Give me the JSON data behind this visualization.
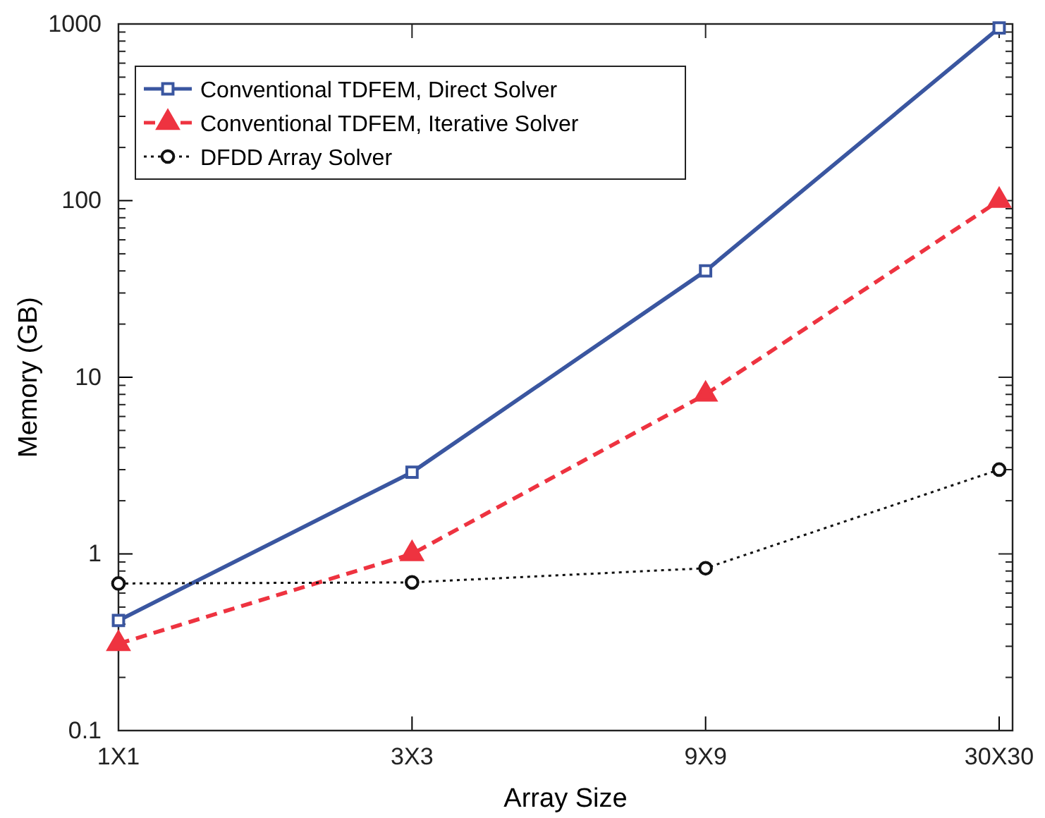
{
  "chart_data": {
    "type": "line",
    "xlabel": "Array Size",
    "ylabel": "Memory (GB)",
    "log": "y",
    "categories": [
      "1X1",
      "3X3",
      "9X9",
      "30X30"
    ],
    "ylim": [
      0.1,
      1000
    ],
    "yticks": [
      0.1,
      1,
      10,
      100,
      1000
    ],
    "grid": false,
    "legend": "top left",
    "series": [
      {
        "name": "Conventional TDFEM, Direct Solver",
        "color": "#3a56a0",
        "values": [
          0.42,
          2.9,
          40,
          950
        ],
        "marker": "square",
        "line_style": "solid"
      },
      {
        "name": "Conventional TDFEM, Iterative Solver",
        "color": "#ee3340",
        "values": [
          0.31,
          1.0,
          8.0,
          100
        ],
        "marker": "triangle",
        "line_style": "dashed"
      },
      {
        "name": "DFDD Array Solver",
        "color": "#111111",
        "values": [
          0.68,
          0.69,
          0.83,
          3.0
        ],
        "marker": "circle",
        "line_style": "dotted"
      }
    ]
  }
}
